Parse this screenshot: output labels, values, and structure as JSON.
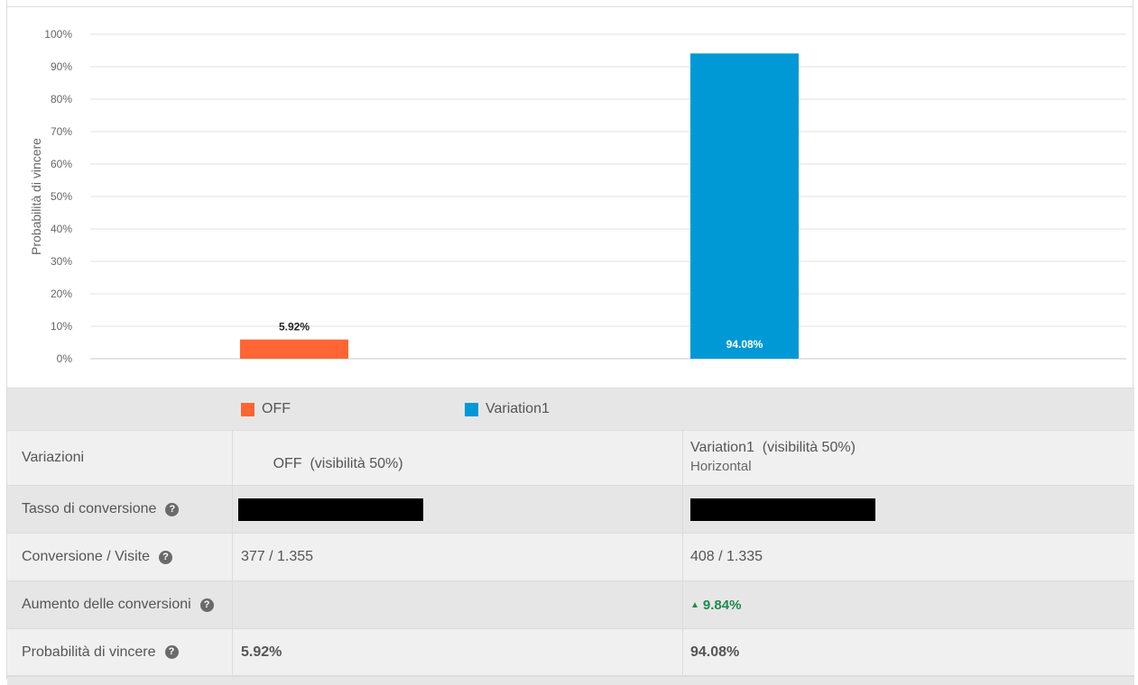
{
  "chart_data": {
    "type": "bar",
    "ylabel": "Probabilità di vincere",
    "yticks": [
      "0%",
      "10%",
      "20%",
      "30%",
      "40%",
      "50%",
      "60%",
      "70%",
      "80%",
      "90%",
      "100%"
    ],
    "ylim": [
      0,
      100
    ],
    "categories": [
      "OFF",
      "Variation1"
    ],
    "values": [
      5.92,
      94.08
    ],
    "data_labels": [
      "5.92%",
      "94.08%"
    ],
    "colors": [
      "#ff6633",
      "#0099d6"
    ]
  },
  "legend": [
    {
      "label": "OFF",
      "color": "#ff6633"
    },
    {
      "label": "Variation1",
      "color": "#0099d6"
    }
  ],
  "table": {
    "variations_label": "Variazioni",
    "off_name": "OFF  (visibilità 50%)",
    "var1_name": "Variation1  (visibilità 50%)",
    "var1_sub": "Horizontal",
    "conv_rate_label": "Tasso di conversione",
    "conv_visits_label": "Conversione / Visite",
    "off_conv_visits": "377 / 1.355",
    "var1_conv_visits": "408 / 1.335",
    "uplift_label": "Aumento delle conversioni",
    "var1_uplift": "9.84%",
    "prob_label": "Probabilità di vincere",
    "off_prob": "5.92%",
    "var1_prob": "94.08%",
    "help_glyph": "?",
    "up_glyph": "▲"
  }
}
